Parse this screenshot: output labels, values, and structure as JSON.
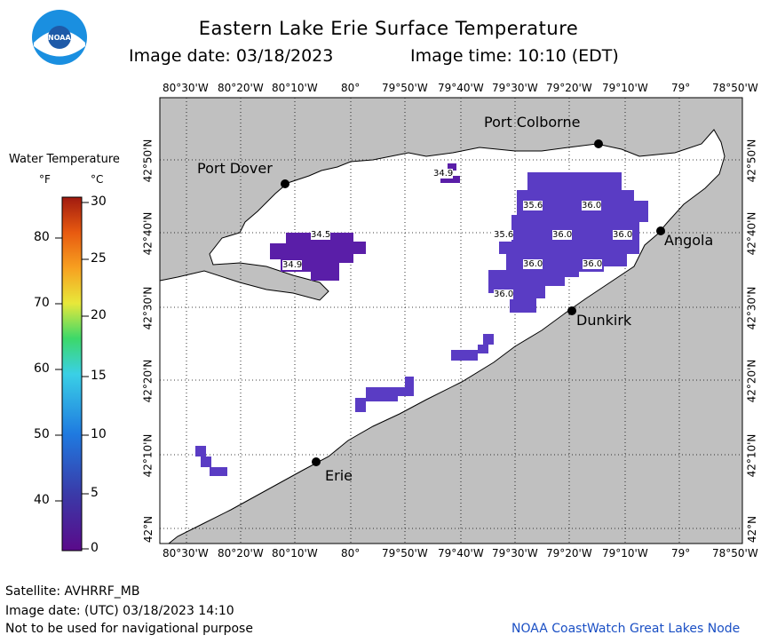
{
  "header": {
    "title": "Eastern Lake Erie Surface Temperature",
    "image_date_line": "Image date: 03/18/2023",
    "image_time_line": "Image time: 10:10 (EDT)"
  },
  "logo": {
    "text": "NOAA"
  },
  "legend": {
    "title": "Water Temperature",
    "unit_f": "°F",
    "unit_c": "°C",
    "f_ticks": [
      "80",
      "70",
      "60",
      "50",
      "40"
    ],
    "c_ticks": [
      "30",
      "25",
      "20",
      "15",
      "10",
      "5",
      "0"
    ],
    "colors": [
      "#5a0a8a",
      "#3a3aa8",
      "#1f7ae0",
      "#3ad0e6",
      "#3cd86a",
      "#e8e83a",
      "#f7a020",
      "#e85a10",
      "#a01a10"
    ]
  },
  "map": {
    "lon_labels": [
      "80°30'W",
      "80°20'W",
      "80°10'W",
      "80°",
      "79°50'W",
      "79°40'W",
      "79°30'W",
      "79°20'W",
      "79°10'W",
      "79°",
      "78°50'W"
    ],
    "lat_labels": [
      "42°50'N",
      "42°40'N",
      "42°30'N",
      "42°20'N",
      "42°10'N",
      "42°N"
    ],
    "cities": [
      "Port Colborne",
      "Port Dover",
      "Angola",
      "Dunkirk",
      "Erie"
    ],
    "temps": [
      "34.9",
      "34.5",
      "34.9",
      "35.6",
      "36.0",
      "35.6",
      "36.0",
      "36.0",
      "36.0",
      "36.0",
      "36.0"
    ]
  },
  "footer": {
    "satellite": "Satellite: AVHRRF_MB",
    "utc_date": "Image date: (UTC) 03/18/2023  14:10",
    "disclaimer": "Not to be used for navigational purpose",
    "credit": "NOAA CoastWatch Great Lakes Node"
  }
}
